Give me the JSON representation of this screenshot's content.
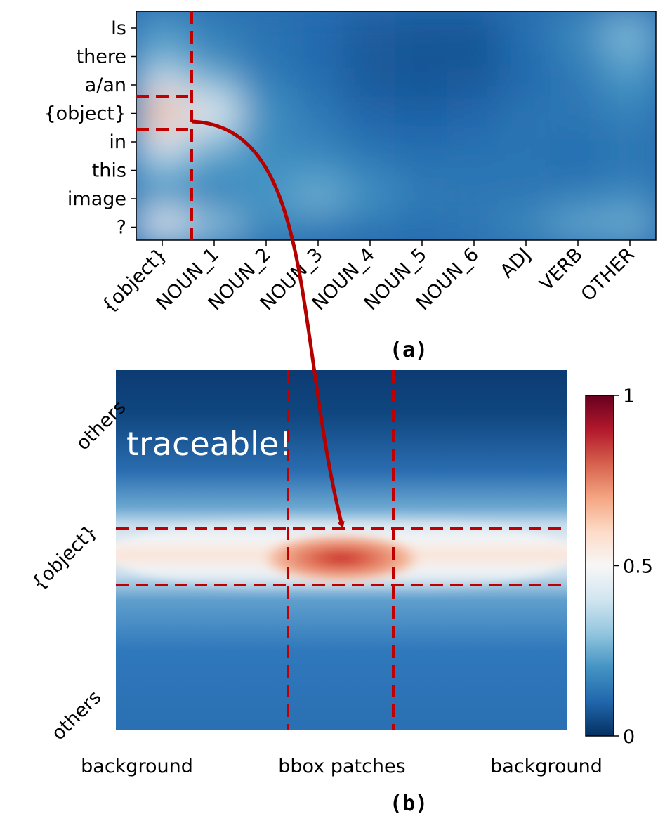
{
  "chart_data": [
    {
      "panel": "(a)",
      "type": "heatmap",
      "y_tokens": [
        "Is",
        "there",
        "a/an",
        "{object}",
        "in",
        "this",
        "image",
        "?"
      ],
      "x_categories": [
        "{object}",
        "NOUN_1",
        "NOUN_2",
        "NOUN_3",
        "NOUN_4",
        "NOUN_5",
        "NOUN_6",
        "ADJ",
        "VERB",
        "OTHER"
      ],
      "values": [
        [
          0.22,
          0.16,
          0.13,
          0.11,
          0.08,
          0.07,
          0.07,
          0.12,
          0.18,
          0.28
        ],
        [
          0.24,
          0.17,
          0.13,
          0.11,
          0.08,
          0.07,
          0.07,
          0.11,
          0.16,
          0.24
        ],
        [
          0.4,
          0.28,
          0.16,
          0.12,
          0.08,
          0.07,
          0.08,
          0.11,
          0.14,
          0.2
        ],
        [
          0.68,
          0.46,
          0.2,
          0.14,
          0.1,
          0.09,
          0.1,
          0.13,
          0.14,
          0.16
        ],
        [
          0.44,
          0.28,
          0.18,
          0.16,
          0.12,
          0.11,
          0.12,
          0.13,
          0.12,
          0.14
        ],
        [
          0.26,
          0.2,
          0.2,
          0.2,
          0.16,
          0.13,
          0.13,
          0.13,
          0.12,
          0.14
        ],
        [
          0.2,
          0.16,
          0.2,
          0.26,
          0.2,
          0.15,
          0.14,
          0.14,
          0.16,
          0.18
        ],
        [
          0.48,
          0.3,
          0.18,
          0.15,
          0.13,
          0.12,
          0.14,
          0.18,
          0.24,
          0.26
        ]
      ],
      "highlight_row": "{object}",
      "highlight_col": "{object}"
    },
    {
      "panel": "(b)",
      "type": "heatmap",
      "y_regions": [
        "others",
        "{object}",
        "others"
      ],
      "x_regions": [
        "background",
        "bbox patches",
        "background"
      ],
      "colorbar": {
        "min": 0,
        "max": 1,
        "ticks": [
          "0",
          "0.5",
          "1"
        ],
        "colormap": "RdBu_r"
      },
      "annotation": "traceable!",
      "peak_value": 0.82
    }
  ],
  "panel_labels": {
    "a": "(a)",
    "b": "(b)"
  },
  "colors": {
    "highlight": "#c00000",
    "arrow": "#b50000"
  }
}
